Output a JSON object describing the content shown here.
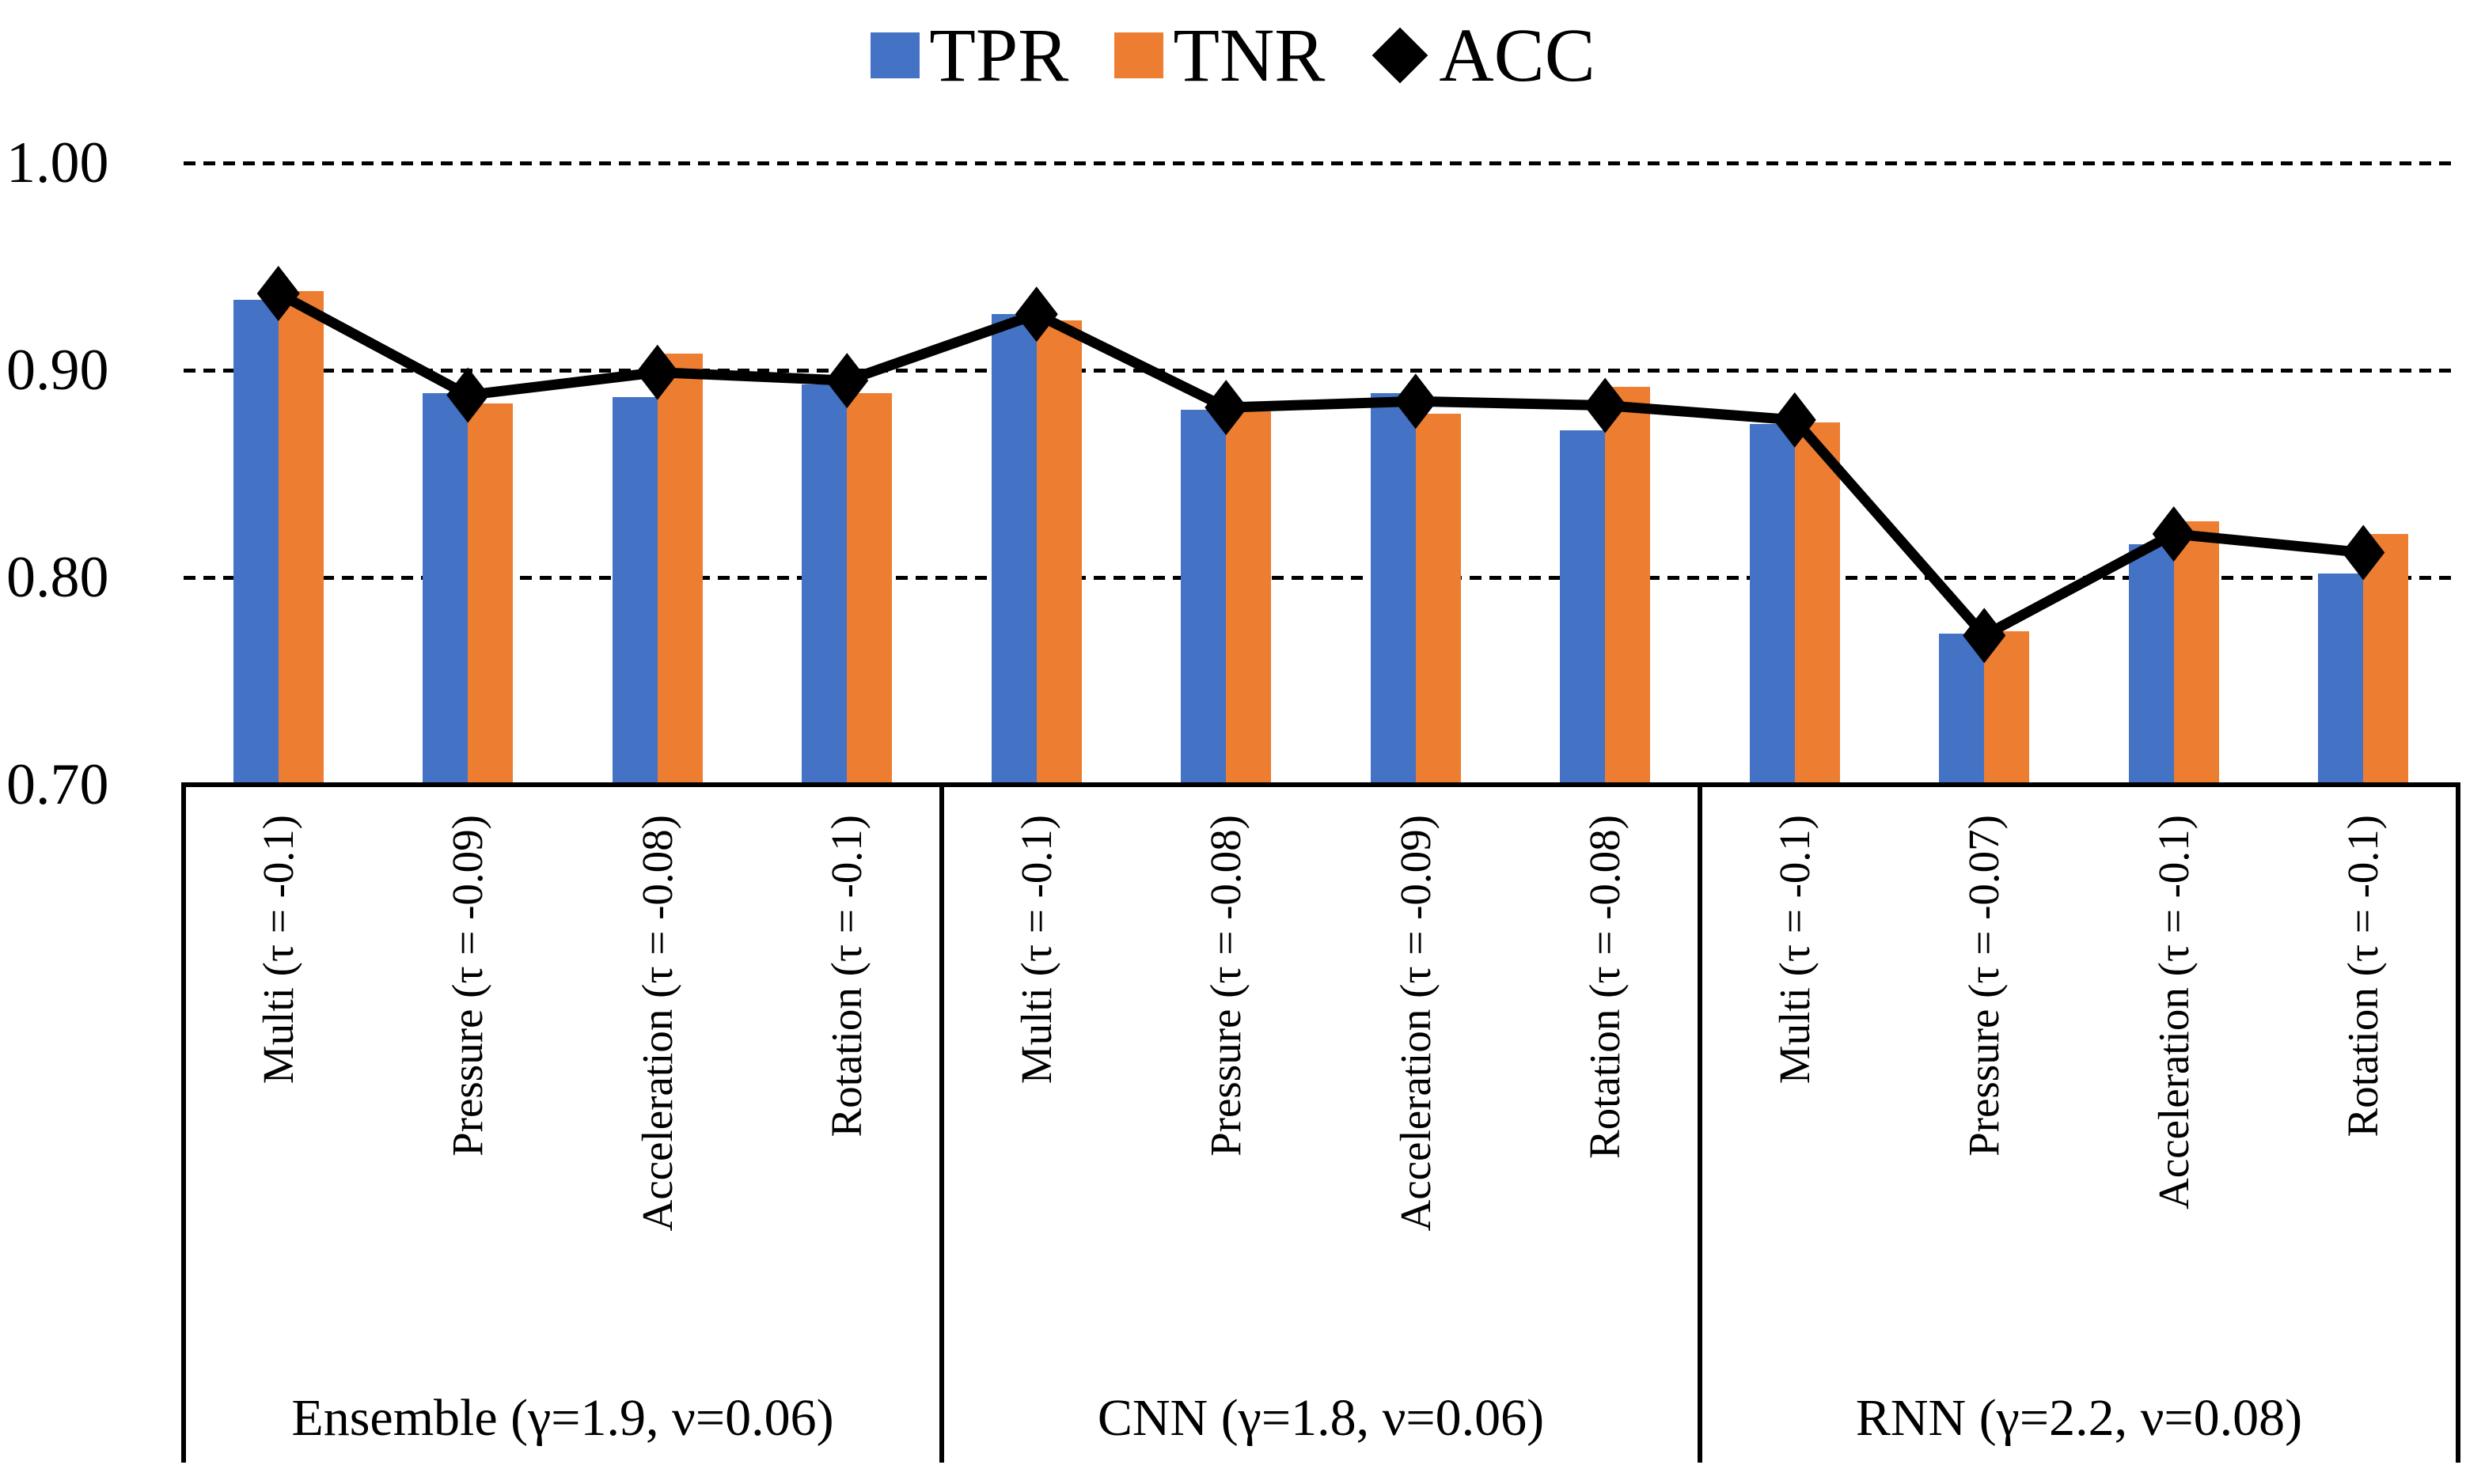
{
  "colors": {
    "tpr": "#4472C4",
    "tnr": "#ED7D31",
    "acc": "#000000",
    "grid": "#000000"
  },
  "legend": [
    {
      "name": "TPR",
      "swatch": "square",
      "color": "#4472C4"
    },
    {
      "name": "TNR",
      "swatch": "square",
      "color": "#ED7D31"
    },
    {
      "name": "ACC",
      "swatch": "diamond",
      "color": "#000000"
    }
  ],
  "y_axis": {
    "ticks": [
      "1.00",
      "0.90",
      "0.80",
      "0.70"
    ],
    "tick_values": [
      1.0,
      0.9,
      0.8,
      0.7
    ],
    "gridline_values": [
      1.0,
      0.9,
      0.8
    ]
  },
  "chart_data": {
    "type": "bar+line",
    "title": "",
    "xlabel": "",
    "ylabel": "",
    "ylim": [
      0.7,
      1.0
    ],
    "grid": "horizontal dashed",
    "legend_position": "top-center",
    "bar_series": [
      "TPR",
      "TNR"
    ],
    "line_series": [
      "ACC"
    ],
    "groups": [
      {
        "label": "Ensemble (γ=1.9, ν=0.06)",
        "categories": [
          "Multi (τ = -0.1)",
          "Pressure (τ = -0.09)",
          "Acceleration (τ = -0.08)",
          "Rotation (τ = -0.1)"
        ],
        "TPR": [
          0.934,
          0.889,
          0.887,
          0.893
        ],
        "TNR": [
          0.938,
          0.884,
          0.908,
          0.889
        ],
        "ACC": [
          0.937,
          0.888,
          0.899,
          0.895
        ]
      },
      {
        "label": "CNN (γ=1.8, ν=0.06)",
        "categories": [
          "Multi (τ = -0.1)",
          "Pressure (τ = -0.08)",
          "Acceleration (τ = -0.09)",
          "Rotation (τ = -0.08)"
        ],
        "TPR": [
          0.927,
          0.881,
          0.889,
          0.871
        ],
        "TNR": [
          0.924,
          0.88,
          0.879,
          0.892
        ],
        "ACC": [
          0.927,
          0.882,
          0.885,
          0.883
        ]
      },
      {
        "label": "RNN (γ=2.2, ν=0.08)",
        "categories": [
          "Multi (τ = -0.1)",
          "Pressure (τ = -0.07)",
          "Acceleration (τ = -0.1)",
          "Rotation (τ = -0.1)"
        ],
        "TPR": [
          0.874,
          0.773,
          0.816,
          0.802
        ],
        "TNR": [
          0.875,
          0.774,
          0.827,
          0.821
        ],
        "ACC": [
          0.876,
          0.772,
          0.821,
          0.812
        ]
      }
    ]
  }
}
